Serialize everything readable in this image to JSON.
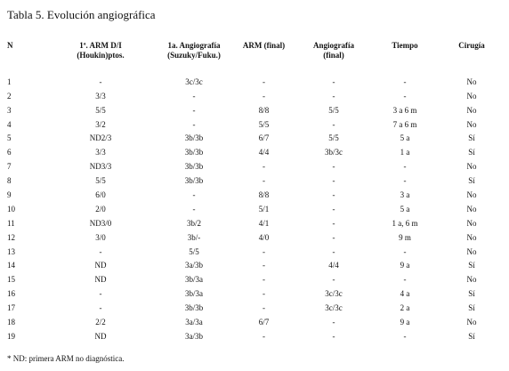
{
  "title": "Tabla 5. Evolución angiográfica",
  "headers": [
    "N",
    "1ª. ARM D/I\n(Houkin)ptos.",
    "1a. Angiografía\n(Suzuky/Fuku.)",
    "ARM (final)",
    "Angiografía\n(final)",
    "Tiempo",
    "Cirugía"
  ],
  "rows": [
    [
      "1",
      "-",
      "3c/3c",
      "-",
      "-",
      "-",
      "No"
    ],
    [
      "2",
      "3/3",
      "-",
      "-",
      "-",
      "-",
      "No"
    ],
    [
      "3",
      "5/5",
      "-",
      "8/8",
      "5/5",
      "3 a 6 m",
      "No"
    ],
    [
      "4",
      "3/2",
      "-",
      "5/5",
      "-",
      "7 a 6 m",
      "No"
    ],
    [
      "5",
      "ND2/3",
      "3b/3b",
      "6/7",
      "5/5",
      "5 a",
      "Sí"
    ],
    [
      "6",
      "3/3",
      "3b/3b",
      "4/4",
      "3b/3c",
      "1 a",
      "Sí"
    ],
    [
      "7",
      "ND3/3",
      "3b/3b",
      "-",
      "-",
      "-",
      "No"
    ],
    [
      "8",
      "5/5",
      "3b/3b",
      "-",
      "-",
      "-",
      "Sí"
    ],
    [
      "9",
      "6/0",
      "-",
      "8/8",
      "-",
      "3 a",
      "No"
    ],
    [
      "10",
      "2/0",
      "-",
      "5/1",
      "-",
      "5 a",
      "No"
    ],
    [
      "11",
      "ND3/0",
      "3b/2",
      "4/1",
      "-",
      "1 a, 6 m",
      "No"
    ],
    [
      "12",
      "3/0",
      "3b/-",
      "4/0",
      "-",
      "9 m",
      "No"
    ],
    [
      "13",
      "-",
      "5/5",
      "-",
      "-",
      "-",
      "No"
    ],
    [
      "14",
      "ND",
      "3a/3b",
      "-",
      "4/4",
      "9 a",
      "Sí"
    ],
    [
      "15",
      "ND",
      "3b/3a",
      "-",
      "-",
      "-",
      "No"
    ],
    [
      "16",
      "-",
      "3b/3a",
      "-",
      "3c/3c",
      "4 a",
      "Sí"
    ],
    [
      "17",
      "-",
      "3b/3b",
      "-",
      "3c/3c",
      "2 a",
      "Sí"
    ],
    [
      "18",
      "2/2",
      "3a/3a",
      "6/7",
      "-",
      "9 a",
      "No"
    ],
    [
      "19",
      "ND",
      "3a/3b",
      "-",
      "-",
      "-",
      "Sí"
    ]
  ],
  "footnote": "* ND: primera ARM no diagnóstica."
}
